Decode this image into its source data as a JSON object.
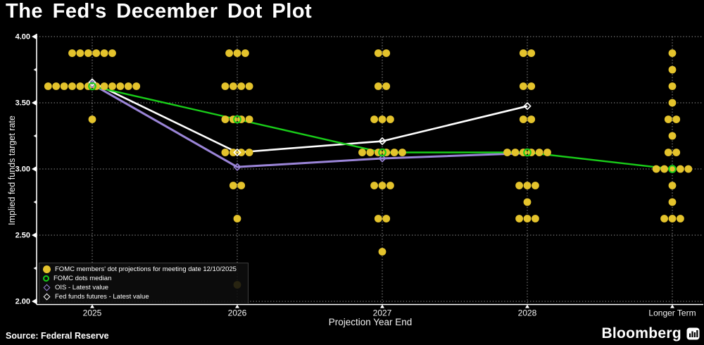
{
  "title": "The Fed's December Dot Plot",
  "source_note": "Source: Federal Reserve",
  "brand": {
    "name": "Bloomberg",
    "icon": "bloomberg-terminal-icon"
  },
  "legend": {
    "items": [
      {
        "swatch": "dot-filled",
        "color": "#E4C32C",
        "label": "FOMC members' dot projections for meeting date 12/10/2025"
      },
      {
        "swatch": "circle-open",
        "color": "#19CD19",
        "label": "FOMC dots median"
      },
      {
        "swatch": "diamond-open",
        "color": "#9B85D8",
        "label": "OIS - Latest value"
      },
      {
        "swatch": "diamond-open",
        "color": "#FFFFFF",
        "label": "Fed funds futures - Latest value"
      }
    ]
  },
  "chart_data": {
    "type": "scatter",
    "title": "The Fed's December Dot Plot",
    "xlabel": "Projection Year End",
    "ylabel": "Implied fed funds target rate",
    "ylim": [
      2.0,
      4.0
    ],
    "grid": "dotted",
    "legend_position": "bottom-left",
    "background": "#000000",
    "dot_color": "#E4C32C",
    "y_major_ticks": [
      4.0,
      3.5,
      3.0,
      2.5,
      2.0
    ],
    "y_tick_labels": [
      "4.00",
      "3.50",
      "3.00",
      "2.50",
      "2.00"
    ],
    "y_minor_ticks": [
      3.75,
      3.25,
      2.75,
      2.25
    ],
    "categories": [
      "2025",
      "2026",
      "2027",
      "2028",
      "Longer Term"
    ],
    "dots": [
      {
        "year": "2025",
        "rate": 3.875,
        "count": 6
      },
      {
        "year": "2025",
        "rate": 3.625,
        "count": 12
      },
      {
        "year": "2025",
        "rate": 3.375,
        "count": 1
      },
      {
        "year": "2026",
        "rate": 3.875,
        "count": 3
      },
      {
        "year": "2026",
        "rate": 3.625,
        "count": 4
      },
      {
        "year": "2026",
        "rate": 3.375,
        "count": 4
      },
      {
        "year": "2026",
        "rate": 3.125,
        "count": 4
      },
      {
        "year": "2026",
        "rate": 2.875,
        "count": 2
      },
      {
        "year": "2026",
        "rate": 2.625,
        "count": 1
      },
      {
        "year": "2026",
        "rate": 2.125,
        "count": 1
      },
      {
        "year": "2027",
        "rate": 3.875,
        "count": 2
      },
      {
        "year": "2027",
        "rate": 3.625,
        "count": 2
      },
      {
        "year": "2027",
        "rate": 3.375,
        "count": 3
      },
      {
        "year": "2027",
        "rate": 3.125,
        "count": 6
      },
      {
        "year": "2027",
        "rate": 2.875,
        "count": 3
      },
      {
        "year": "2027",
        "rate": 2.625,
        "count": 2
      },
      {
        "year": "2027",
        "rate": 2.375,
        "count": 1
      },
      {
        "year": "2028",
        "rate": 3.875,
        "count": 2
      },
      {
        "year": "2028",
        "rate": 3.625,
        "count": 2
      },
      {
        "year": "2028",
        "rate": 3.375,
        "count": 2
      },
      {
        "year": "2028",
        "rate": 3.125,
        "count": 6
      },
      {
        "year": "2028",
        "rate": 2.875,
        "count": 3
      },
      {
        "year": "2028",
        "rate": 2.75,
        "count": 1
      },
      {
        "year": "2028",
        "rate": 2.625,
        "count": 3
      },
      {
        "year": "Longer Term",
        "rate": 3.875,
        "count": 1
      },
      {
        "year": "Longer Term",
        "rate": 3.75,
        "count": 1
      },
      {
        "year": "Longer Term",
        "rate": 3.625,
        "count": 1
      },
      {
        "year": "Longer Term",
        "rate": 3.5,
        "count": 1
      },
      {
        "year": "Longer Term",
        "rate": 3.375,
        "count": 2
      },
      {
        "year": "Longer Term",
        "rate": 3.25,
        "count": 1
      },
      {
        "year": "Longer Term",
        "rate": 3.125,
        "count": 2
      },
      {
        "year": "Longer Term",
        "rate": 3.0,
        "count": 5
      },
      {
        "year": "Longer Term",
        "rate": 2.875,
        "count": 1
      },
      {
        "year": "Longer Term",
        "rate": 2.75,
        "count": 1
      },
      {
        "year": "Longer Term",
        "rate": 2.625,
        "count": 3
      }
    ],
    "series": [
      {
        "name": "OIS - Latest value",
        "color": "#9B85D8",
        "marker": "diamond",
        "x": [
          "2025",
          "2026",
          "2027",
          "2028"
        ],
        "values": [
          3.64,
          3.015,
          3.08,
          3.12
        ],
        "marker_indices": [
          0,
          1,
          2
        ]
      },
      {
        "name": "Fed funds futures - Latest value",
        "color": "#FFFFFF",
        "marker": "diamond",
        "x": [
          "2025",
          "2026",
          "2027",
          "2028"
        ],
        "values": [
          3.655,
          3.125,
          3.21,
          3.475
        ],
        "marker_indices": [
          0,
          1,
          2,
          3
        ]
      },
      {
        "name": "FOMC dots median",
        "color": "#19CD19",
        "marker": "circle",
        "x": [
          "2025",
          "2026",
          "2027",
          "2028",
          "Longer Term"
        ],
        "values": [
          3.625,
          3.375,
          3.125,
          3.125,
          3.0
        ],
        "marker_indices": [
          0,
          1,
          2,
          3,
          4
        ]
      }
    ]
  }
}
